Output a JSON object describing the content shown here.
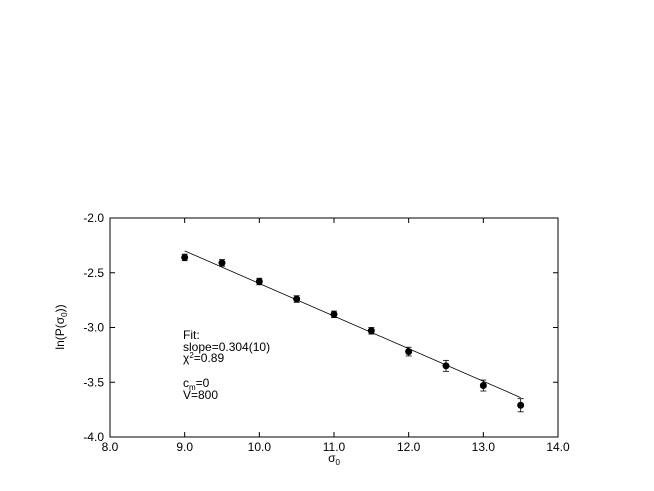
{
  "chart_data": {
    "type": "scatter",
    "x_label": {
      "text": "σ",
      "sub": "0"
    },
    "y_label": {
      "pre": "ln(P(σ",
      "sub": "0",
      "post": "))"
    },
    "x": [
      9.0,
      9.5,
      10.0,
      10.5,
      11.0,
      11.5,
      12.0,
      12.5,
      13.0,
      13.5
    ],
    "series": [
      {
        "color": "#000000",
        "values": [
          -2.36,
          -2.41,
          -2.58,
          -2.74,
          -2.88,
          -3.03,
          -3.22,
          -3.35,
          -3.53,
          -3.71
        ],
        "errors": [
          0.03,
          0.03,
          0.03,
          0.03,
          0.03,
          0.03,
          0.04,
          0.05,
          0.05,
          0.06
        ]
      }
    ],
    "fit_line": {
      "x": [
        9.0,
        13.5
      ],
      "values": [
        -2.3,
        -3.64
      ]
    },
    "annotations": {
      "fit": "Fit:",
      "slope": "slope=0.304(10)",
      "chi": {
        "text": "χ",
        "sup": "2",
        "rest": "=0.89"
      },
      "cm": {
        "text": "c",
        "sub": "m",
        "rest": "=0"
      },
      "v": "V=800"
    },
    "xlim": [
      8.0,
      14.0
    ],
    "ylim": [
      -4.0,
      -2.0
    ],
    "xticks": [
      {
        "value": 8,
        "label": "8.0"
      },
      {
        "value": 9,
        "label": "9.0"
      },
      {
        "value": 10,
        "label": "10.0"
      },
      {
        "value": 11,
        "label": "11.0"
      },
      {
        "value": 12,
        "label": "12.0"
      },
      {
        "value": 13,
        "label": "13.0"
      },
      {
        "value": 14,
        "label": "14.0"
      }
    ],
    "yticks": [
      {
        "value": -4,
        "label": "-4.0"
      },
      {
        "value": -3.5,
        "label": "-3.5"
      },
      {
        "value": -3,
        "label": "-3.0"
      },
      {
        "value": -2.5,
        "label": "-2.5"
      },
      {
        "value": -2,
        "label": "-2.0"
      }
    ],
    "grid": false
  }
}
